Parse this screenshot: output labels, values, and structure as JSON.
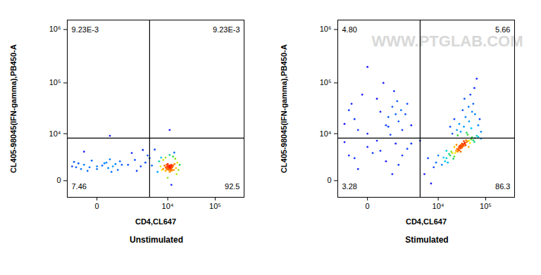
{
  "chart_data": [
    {
      "type": "scatter",
      "title": "Unstimulated",
      "x_label": "CD4,CL647",
      "y_label": "CL405-98045(IFN-gamma),PB450-A",
      "log": true,
      "xlim": [
        -1100,
        400000
      ],
      "ylim": [
        -1600,
        1500000
      ],
      "xticks": [
        0,
        {
          "value": 10000,
          "label": "10⁴"
        },
        {
          "value": 100000,
          "label": "10⁵"
        }
      ],
      "yticks": [
        0,
        {
          "value": 10000,
          "label": "10⁴"
        },
        {
          "value": 100000,
          "label": "10⁵"
        },
        {
          "value": 1000000,
          "label": "10⁶"
        }
      ],
      "gate": {
        "x": 4000,
        "y": 8000
      },
      "quadrants": {
        "upper_left": {
          "value": 0.00923,
          "label": "9.23E-3"
        },
        "upper_right": {
          "value": 0.00923,
          "label": "9.23E-3"
        },
        "lower_left": 7.46,
        "lower_right": 92.5
      },
      "points": [
        [
          -600,
          1200
        ],
        [
          -300,
          1500
        ],
        [
          0,
          1000
        ],
        [
          200,
          1800
        ],
        [
          400,
          1300
        ],
        [
          -100,
          2100
        ],
        [
          600,
          900
        ],
        [
          -500,
          1700
        ],
        [
          100,
          1400
        ],
        [
          300,
          2300
        ],
        [
          -200,
          800
        ],
        [
          500,
          1600
        ],
        [
          -700,
          1900
        ],
        [
          0,
          1300
        ],
        [
          250,
          1100
        ],
        [
          -400,
          1000
        ],
        [
          700,
          2000
        ],
        [
          150,
          1700
        ],
        [
          -150,
          1200
        ],
        [
          800,
          1500
        ],
        [
          -800,
          1300
        ],
        [
          350,
          700
        ],
        [
          1200,
          1500
        ],
        [
          1800,
          2200
        ],
        [
          2500,
          1300
        ],
        [
          3200,
          1800
        ],
        [
          4000,
          2500
        ],
        [
          1500,
          3500
        ],
        [
          2800,
          4200
        ],
        [
          3600,
          3000
        ],
        [
          4500,
          1400
        ],
        [
          5200,
          4300
        ],
        [
          -300,
          3800
        ],
        [
          2000,
          800
        ],
        [
          8000,
          1000
        ],
        [
          9000,
          1200
        ],
        [
          10000,
          1100
        ],
        [
          11000,
          1300
        ],
        [
          12000,
          1000
        ],
        [
          13000,
          1400
        ],
        [
          10500,
          900
        ],
        [
          9500,
          1500
        ],
        [
          11500,
          800
        ],
        [
          12500,
          1200
        ],
        [
          10000,
          1600
        ],
        [
          11000,
          700
        ],
        [
          9000,
          800
        ],
        [
          13500,
          900
        ],
        [
          14000,
          1600
        ],
        [
          8500,
          1400
        ],
        [
          10800,
          1250
        ],
        [
          11200,
          1050
        ],
        [
          9800,
          1300
        ],
        [
          10200,
          1000
        ],
        [
          11700,
          1450
        ],
        [
          12300,
          850
        ],
        [
          10600,
          1150
        ],
        [
          11300,
          1200
        ],
        [
          9300,
          1100
        ],
        [
          12800,
          1300
        ],
        [
          10900,
          1400
        ],
        [
          11600,
          1100
        ],
        [
          10300,
          1300
        ],
        [
          11900,
          1250
        ],
        [
          7000,
          1300
        ],
        [
          7500,
          900
        ],
        [
          15000,
          1100
        ],
        [
          16000,
          1800
        ],
        [
          17000,
          900
        ],
        [
          6500,
          2000
        ],
        [
          14500,
          2400
        ],
        [
          13000,
          2800
        ],
        [
          9000,
          2600
        ],
        [
          11000,
          3100
        ],
        [
          12000,
          -300
        ],
        [
          10000,
          200
        ],
        [
          8000,
          2200
        ],
        [
          15500,
          500
        ],
        [
          18000,
          1500
        ],
        [
          6000,
          700
        ],
        [
          7200,
          2600
        ],
        [
          13800,
          3600
        ],
        [
          10400,
          1050
        ],
        [
          11100,
          1150
        ],
        [
          10700,
          1350
        ],
        [
          11400,
          950
        ],
        [
          9600,
          950
        ],
        [
          12100,
          1500
        ],
        [
          10000,
          1200
        ],
        [
          11000,
          1000
        ],
        [
          300,
          9000
        ],
        [
          11000,
          12000
        ]
      ]
    },
    {
      "type": "scatter",
      "title": "Stimulated",
      "x_label": "CD4,CL647",
      "y_label": "CL405-98045(IFN-gamma),PB450-A",
      "watermark": "WWW.PTGLAB.COM",
      "log": true,
      "xlim": [
        -1100,
        400000
      ],
      "ylim": [
        -1600,
        1500000
      ],
      "xticks": [
        0,
        {
          "value": 10000,
          "label": "10⁴"
        },
        {
          "value": 100000,
          "label": "10⁵"
        }
      ],
      "yticks": [
        0,
        {
          "value": 10000,
          "label": "10⁴"
        },
        {
          "value": 100000,
          "label": "10⁵"
        },
        {
          "value": 1000000,
          "label": "10⁶"
        }
      ],
      "gate": {
        "x": 4000,
        "y": 8000
      },
      "quadrants": {
        "upper_left": {
          "value": 4.8,
          "label": "4.80"
        },
        "upper_right": 5.66,
        "lower_left": 3.28,
        "lower_right": 86.3
      },
      "points": [
        [
          12000,
          1500
        ],
        [
          14000,
          2000
        ],
        [
          15000,
          2500
        ],
        [
          16000,
          1800
        ],
        [
          18000,
          3000
        ],
        [
          20000,
          3500
        ],
        [
          22000,
          2800
        ],
        [
          24000,
          4000
        ],
        [
          25000,
          4500
        ],
        [
          26000,
          3800
        ],
        [
          28000,
          5000
        ],
        [
          30000,
          5200
        ],
        [
          32000,
          4800
        ],
        [
          34000,
          5600
        ],
        [
          36000,
          6000
        ],
        [
          38000,
          5500
        ],
        [
          40000,
          6500
        ],
        [
          45000,
          7000
        ],
        [
          50000,
          7500
        ],
        [
          55000,
          7200
        ],
        [
          60000,
          8000
        ],
        [
          70000,
          8500
        ],
        [
          80000,
          7800
        ],
        [
          27000,
          4400
        ],
        [
          29000,
          4700
        ],
        [
          31000,
          5500
        ],
        [
          33000,
          5100
        ],
        [
          35000,
          5300
        ],
        [
          30000,
          4600
        ],
        [
          28500,
          5300
        ],
        [
          31500,
          4900
        ],
        [
          29500,
          5100
        ],
        [
          30500,
          5000
        ],
        [
          27500,
          4900
        ],
        [
          32500,
          5400
        ],
        [
          26500,
          4200
        ],
        [
          33500,
          5800
        ],
        [
          25500,
          3900
        ],
        [
          37000,
          6300
        ],
        [
          23000,
          3500
        ],
        [
          21000,
          2400
        ],
        [
          19000,
          3800
        ],
        [
          42000,
          6800
        ],
        [
          47000,
          6200
        ],
        [
          52000,
          8300
        ],
        [
          17000,
          3300
        ],
        [
          13000,
          2600
        ],
        [
          65000,
          9000
        ],
        [
          24500,
          5600
        ],
        [
          39000,
          7200
        ],
        [
          30000,
          3800
        ],
        [
          35000,
          6800
        ],
        [
          28000,
          4100
        ],
        [
          32000,
          6000
        ],
        [
          10000,
          3000
        ],
        [
          9000,
          1800
        ],
        [
          22000,
          5000
        ],
        [
          44000,
          5000
        ],
        [
          15000,
          4000
        ],
        [
          58000,
          6600
        ],
        [
          31000,
          5000
        ],
        [
          29000,
          5000
        ],
        [
          30000,
          5500
        ],
        [
          20000,
          10000
        ],
        [
          25000,
          12000
        ],
        [
          30000,
          11000
        ],
        [
          35000,
          14000
        ],
        [
          40000,
          10500
        ],
        [
          45000,
          18000
        ],
        [
          50000,
          13000
        ],
        [
          28000,
          16000
        ],
        [
          60000,
          25000
        ],
        [
          38000,
          22000
        ],
        [
          55000,
          40000
        ],
        [
          70000,
          15000
        ],
        [
          33000,
          30000
        ],
        [
          48000,
          60000
        ],
        [
          65000,
          120000
        ],
        [
          42000,
          9500
        ],
        [
          22000,
          20000
        ],
        [
          80000,
          11000
        ],
        [
          36000,
          50000
        ],
        [
          58000,
          80000
        ],
        [
          26000,
          9200
        ],
        [
          52000,
          28000
        ],
        [
          44000,
          35000
        ],
        [
          75000,
          20000
        ],
        [
          18000,
          14000
        ],
        [
          0,
          10000
        ],
        [
          500,
          15000
        ],
        [
          1000,
          25000
        ],
        [
          -300,
          20000
        ],
        [
          800,
          35000
        ],
        [
          1500,
          12000
        ],
        [
          200,
          50000
        ],
        [
          -500,
          30000
        ],
        [
          1200,
          18000
        ],
        [
          600,
          22000
        ],
        [
          2000,
          40000
        ],
        [
          -200,
          12000
        ],
        [
          300,
          28000
        ],
        [
          900,
          70000
        ],
        [
          1800,
          25000
        ],
        [
          -700,
          16000
        ],
        [
          400,
          100000
        ],
        [
          1100,
          45000
        ],
        [
          -100,
          60000
        ],
        [
          2500,
          15000
        ],
        [
          700,
          9500
        ],
        [
          1400,
          30000
        ],
        [
          0,
          200000
        ],
        [
          600,
          14000
        ],
        [
          -400,
          40000
        ],
        [
          -500,
          3000
        ],
        [
          0,
          5000
        ],
        [
          500,
          2000
        ],
        [
          1000,
          6000
        ],
        [
          -200,
          1000
        ],
        [
          300,
          4000
        ],
        [
          1500,
          3000
        ],
        [
          -700,
          6500
        ],
        [
          800,
          500
        ],
        [
          2000,
          4500
        ],
        [
          200,
          7000
        ],
        [
          -300,
          2500
        ],
        [
          1200,
          1500
        ],
        [
          2500,
          6000
        ],
        [
          100,
          3500
        ],
        [
          5000,
          500
        ],
        [
          7000,
          -200
        ],
        [
          8000,
          1200
        ],
        [
          4000,
          7000
        ],
        [
          6000,
          2500
        ]
      ]
    }
  ]
}
